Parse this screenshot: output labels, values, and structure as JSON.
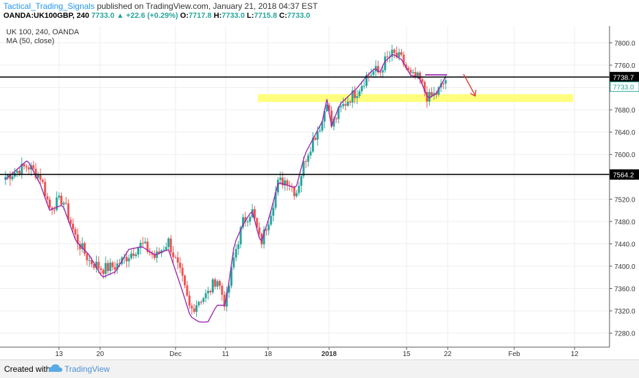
{
  "header": {
    "author": "Tactical_Trading_Signals",
    "published_text": "published on TradingView.com, January 21, 2018 04:37 EST",
    "symbol": "OANDA:UK100GBP, 240",
    "last": "7733.0",
    "change": "+22.6 (+0.29%)",
    "o_label": "O:",
    "o_value": "7717.8",
    "h_label": "H:",
    "h_value": "7733.0",
    "l_label": "L:",
    "l_value": "7715.8",
    "c_label": "C:",
    "c_value": "7733.0"
  },
  "footer": {
    "created_with": "Created with",
    "brand": "TradingView"
  },
  "colors": {
    "up": "#26a69a",
    "down": "#ef5350",
    "ma": "#9c27b0",
    "zone": "#ffff66",
    "arrow": "#e53935"
  },
  "chart_data": {
    "type": "candlestick",
    "title": "UK 100, 240, OANDA",
    "indicator": "MA (50, close)",
    "ylim": [
      7255,
      7830
    ],
    "y_ticks": [
      "7800.0",
      "7760.0",
      "7720.0",
      "7680.0",
      "7640.0",
      "7600.0",
      "7560.0",
      "7520.0",
      "7480.0",
      "7440.0",
      "7400.0",
      "7360.0",
      "7320.0",
      "7280.0"
    ],
    "x_ticks": [
      "13",
      "20",
      "Dec",
      "11",
      "18",
      "2018",
      "15",
      "22",
      "Feb",
      "12"
    ],
    "x_ticks_bold": [
      "2018"
    ],
    "price_labels": [
      {
        "text": "7738.7",
        "value": 7738.7,
        "style": "black"
      },
      {
        "text": "7733.0",
        "value": 7733.0,
        "style": "green"
      },
      {
        "text": "7564.2",
        "value": 7564.2,
        "style": "black"
      }
    ],
    "horizontal_lines": [
      7738.7,
      7564.2
    ],
    "zone": {
      "low": 7694,
      "high": 7708
    },
    "anchors": [
      [
        0,
        7560,
        7555
      ],
      [
        5,
        7580,
        7590
      ],
      [
        8,
        7560,
        7545
      ],
      [
        10,
        7505,
        7500
      ],
      [
        13,
        7520,
        7510
      ],
      [
        16,
        7450,
        7445
      ],
      [
        19,
        7410,
        7420
      ],
      [
        22,
        7395,
        7380
      ],
      [
        25,
        7400,
        7390
      ],
      [
        28,
        7420,
        7430
      ],
      [
        31,
        7440,
        7435
      ],
      [
        34,
        7415,
        7420
      ],
      [
        37,
        7445,
        7430
      ],
      [
        40,
        7380,
        7360
      ],
      [
        42,
        7320,
        7310
      ],
      [
        44,
        7340,
        7300
      ],
      [
        46,
        7350,
        7300
      ],
      [
        48,
        7380,
        7330
      ],
      [
        50,
        7330,
        7330
      ],
      [
        52,
        7420,
        7440
      ],
      [
        54,
        7480,
        7475
      ],
      [
        56,
        7500,
        7500
      ],
      [
        58,
        7440,
        7440
      ],
      [
        60,
        7490,
        7490
      ],
      [
        62,
        7550,
        7550
      ],
      [
        64,
        7555,
        7545
      ],
      [
        66,
        7530,
        7540
      ],
      [
        68,
        7590,
        7600
      ],
      [
        70,
        7630,
        7630
      ],
      [
        72,
        7660,
        7660
      ],
      [
        73,
        7700,
        7700
      ],
      [
        74,
        7650,
        7650
      ],
      [
        76,
        7680,
        7690
      ],
      [
        78,
        7700,
        7705
      ],
      [
        80,
        7715,
        7720
      ],
      [
        82,
        7740,
        7740
      ],
      [
        84,
        7750,
        7755
      ],
      [
        85,
        7745,
        7745
      ],
      [
        86,
        7765,
        7765
      ],
      [
        88,
        7780,
        7780
      ],
      [
        90,
        7770,
        7770
      ],
      [
        92,
        7740,
        7742
      ],
      [
        94,
        7735,
        7738
      ],
      [
        96,
        7700,
        7700
      ],
      [
        98,
        7710,
        7710
      ],
      [
        100,
        7733,
        7740
      ]
    ]
  }
}
